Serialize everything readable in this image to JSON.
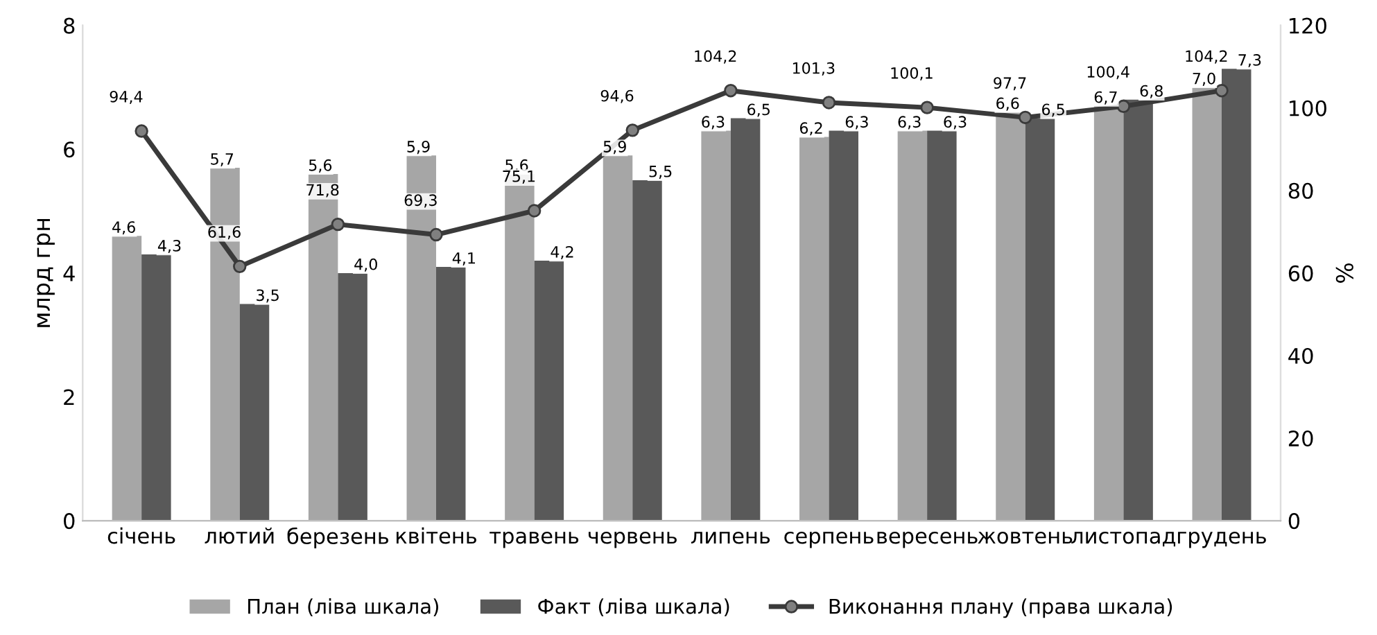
{
  "chart_data": {
    "type": "bar",
    "ylabel": "млрд грн",
    "y2label": "%",
    "categories": [
      "січень",
      "лютий",
      "березень",
      "квітень",
      "травень",
      "червень",
      "липень",
      "серпень",
      "вересень",
      "жовтень",
      "листопад",
      "грудень"
    ],
    "series": [
      {
        "name": "План (ліва шкала)",
        "color": "#a6a6a6",
        "values": [
          4.6,
          5.7,
          5.6,
          5.9,
          5.6,
          5.9,
          6.3,
          6.2,
          6.3,
          6.6,
          6.7,
          7.0
        ],
        "value_labels": [
          "4,6",
          "5,7",
          "5,6",
          "5,9",
          "5,6",
          "5,9",
          "6,3",
          "6,2",
          "6,3",
          "6,6",
          "6,7",
          "7,0"
        ]
      },
      {
        "name": "Факт (ліва шкала)",
        "color": "#595959",
        "values": [
          4.3,
          3.5,
          4.0,
          4.1,
          4.2,
          5.5,
          6.5,
          6.3,
          6.3,
          6.5,
          6.8,
          7.3
        ],
        "value_labels": [
          "4,3",
          "3,5",
          "4,0",
          "4,1",
          "4,2",
          "5,5",
          "6,5",
          "6,3",
          "6,3",
          "6,5",
          "6,8",
          "7,3"
        ]
      },
      {
        "name": "Виконання плану (права шкала)",
        "type": "line",
        "axis": "y2",
        "color": "#3a3a3a",
        "values": [
          94.4,
          61.6,
          71.8,
          69.3,
          75.1,
          94.6,
          104.2,
          101.3,
          100.1,
          97.7,
          100.4,
          104.2
        ],
        "value_labels": [
          "94,4",
          "61,6",
          "71,8",
          "69,3",
          "75,1",
          "94,6",
          "104,2",
          "101,3",
          "100,1",
          "97,7",
          "100,4",
          "104,2"
        ]
      }
    ],
    "ylim": [
      0,
      8
    ],
    "yticks": [
      0,
      2,
      4,
      6,
      8
    ],
    "y2lim": [
      0,
      120
    ],
    "y2ticks": [
      0,
      20,
      40,
      60,
      80,
      100,
      120
    ],
    "legend": "bottom",
    "grid": false,
    "marker": "circle",
    "line_style": "solid"
  }
}
